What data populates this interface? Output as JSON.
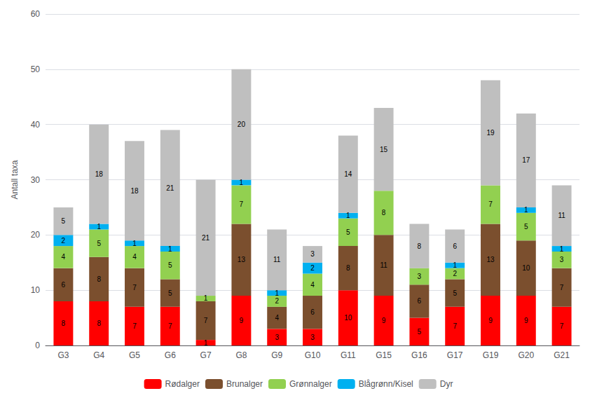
{
  "chart_data": {
    "type": "bar",
    "stacked": true,
    "categories": [
      "G3",
      "G4",
      "G5",
      "G6",
      "G7",
      "G8",
      "G9",
      "G10",
      "G11",
      "G15",
      "G16",
      "G17",
      "G19",
      "G20",
      "G21"
    ],
    "series": [
      {
        "name": "Rødalger",
        "color": "#FF0000",
        "values": [
          8,
          8,
          7,
          7,
          1,
          9,
          3,
          3,
          10,
          9,
          5,
          7,
          9,
          9,
          7
        ]
      },
      {
        "name": "Brunalger",
        "color": "#7B4F2E",
        "values": [
          6,
          8,
          7,
          5,
          7,
          13,
          4,
          6,
          8,
          11,
          6,
          5,
          13,
          10,
          7
        ]
      },
      {
        "name": "Grønnalger",
        "color": "#92D050",
        "values": [
          4,
          5,
          4,
          5,
          1,
          7,
          2,
          4,
          5,
          8,
          3,
          2,
          7,
          5,
          3
        ]
      },
      {
        "name": "Blågrønn/Kisel",
        "color": "#00B0F0",
        "values": [
          2,
          1,
          1,
          1,
          0,
          1,
          1,
          2,
          1,
          0,
          0,
          1,
          0,
          1,
          1
        ]
      },
      {
        "name": "Dyr",
        "color": "#BFBFBF",
        "values": [
          5,
          18,
          18,
          21,
          21,
          20,
          11,
          3,
          14,
          15,
          8,
          6,
          19,
          17,
          11
        ]
      }
    ],
    "ylabel": "Antall taxa",
    "ylim": [
      0,
      60
    ],
    "yticks": [
      0,
      10,
      20,
      30,
      40,
      50,
      60
    ],
    "grid": true,
    "legend": "bottom",
    "data_labels": true
  }
}
